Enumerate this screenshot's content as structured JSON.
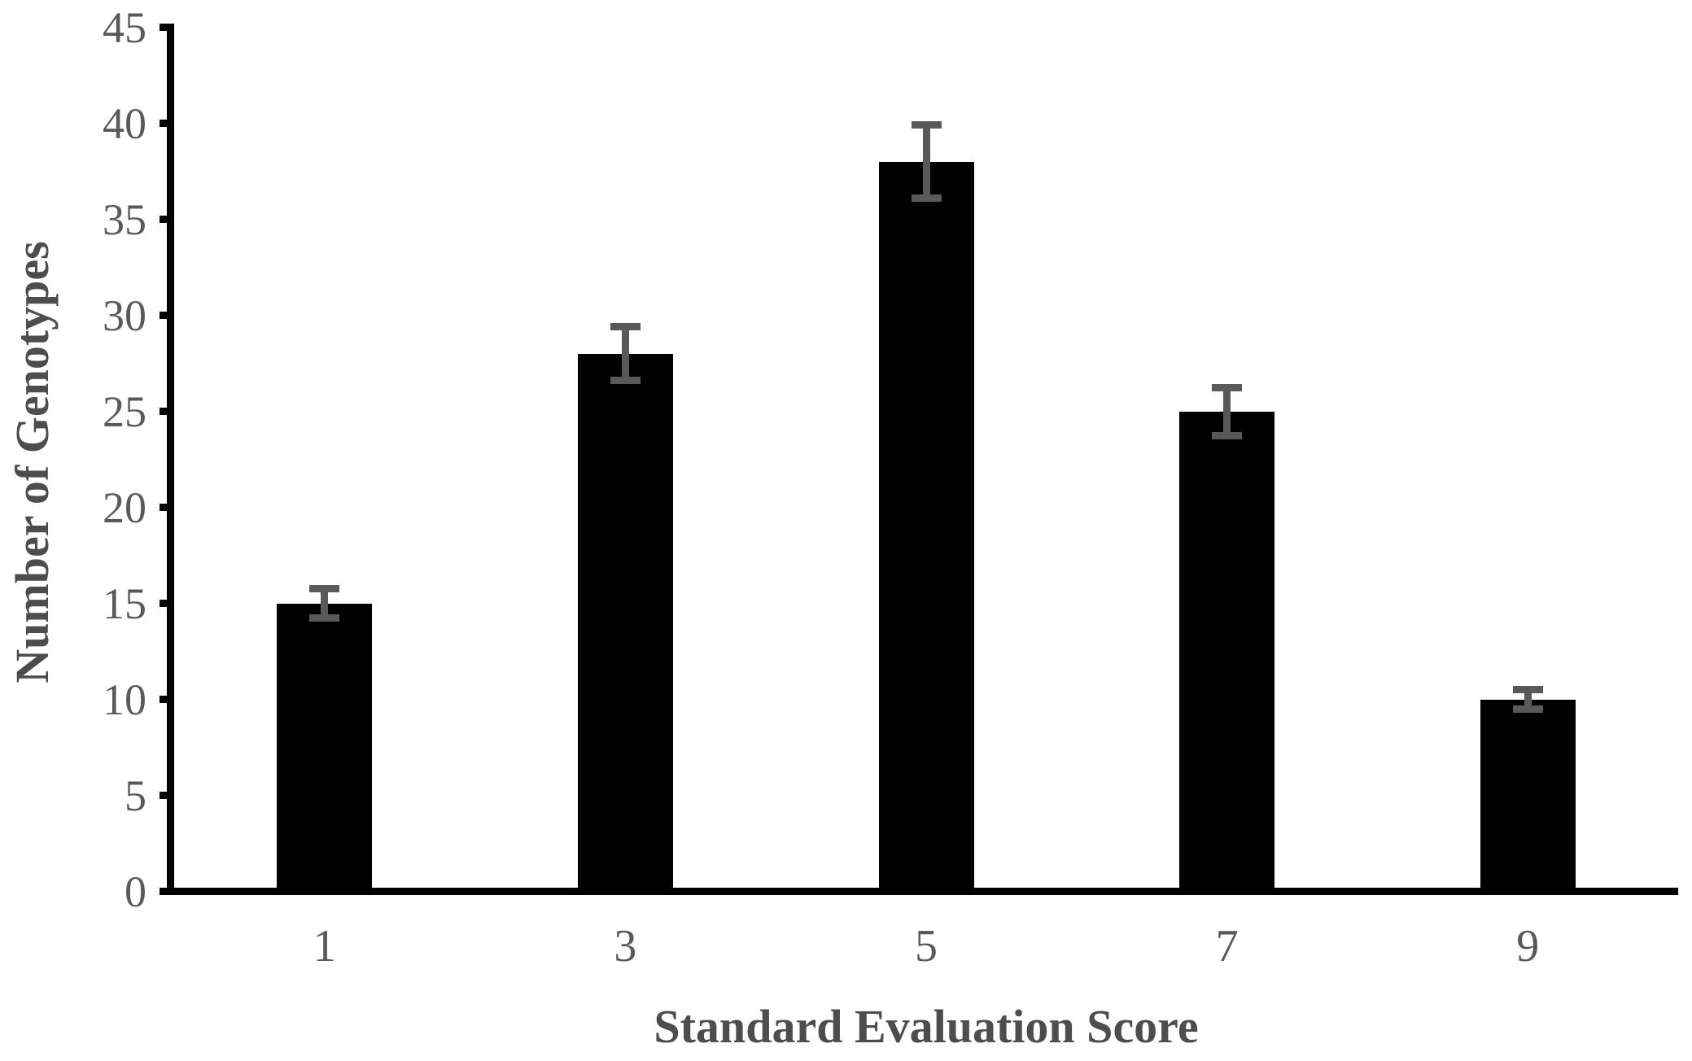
{
  "chart_data": {
    "type": "bar",
    "title": "",
    "categories": [
      "1",
      "3",
      "5",
      "7",
      "9"
    ],
    "values": [
      15,
      28,
      38,
      25,
      10
    ],
    "error_bars_plus": [
      0.75,
      1.4,
      1.9,
      1.25,
      0.5
    ],
    "error_bars_minus": [
      0.75,
      1.4,
      1.9,
      1.25,
      0.5
    ],
    "error_bar_note": "symmetric 5% error bars with caps",
    "xlabel": "Standard Evaluation Score",
    "ylabel": "Number of Genotypes",
    "ylim": [
      0,
      45
    ],
    "ytick_step": 5,
    "ytick_labels": [
      "0",
      "5",
      "10",
      "15",
      "20",
      "25",
      "30",
      "35",
      "40",
      "45"
    ],
    "grid": false,
    "legend": false,
    "colors": {
      "bar": "#000000",
      "error_bar": "#595959",
      "axis": "#000000",
      "tick_label": "#595959",
      "axis_title": "#4d4d4d",
      "background": "#ffffff"
    }
  }
}
